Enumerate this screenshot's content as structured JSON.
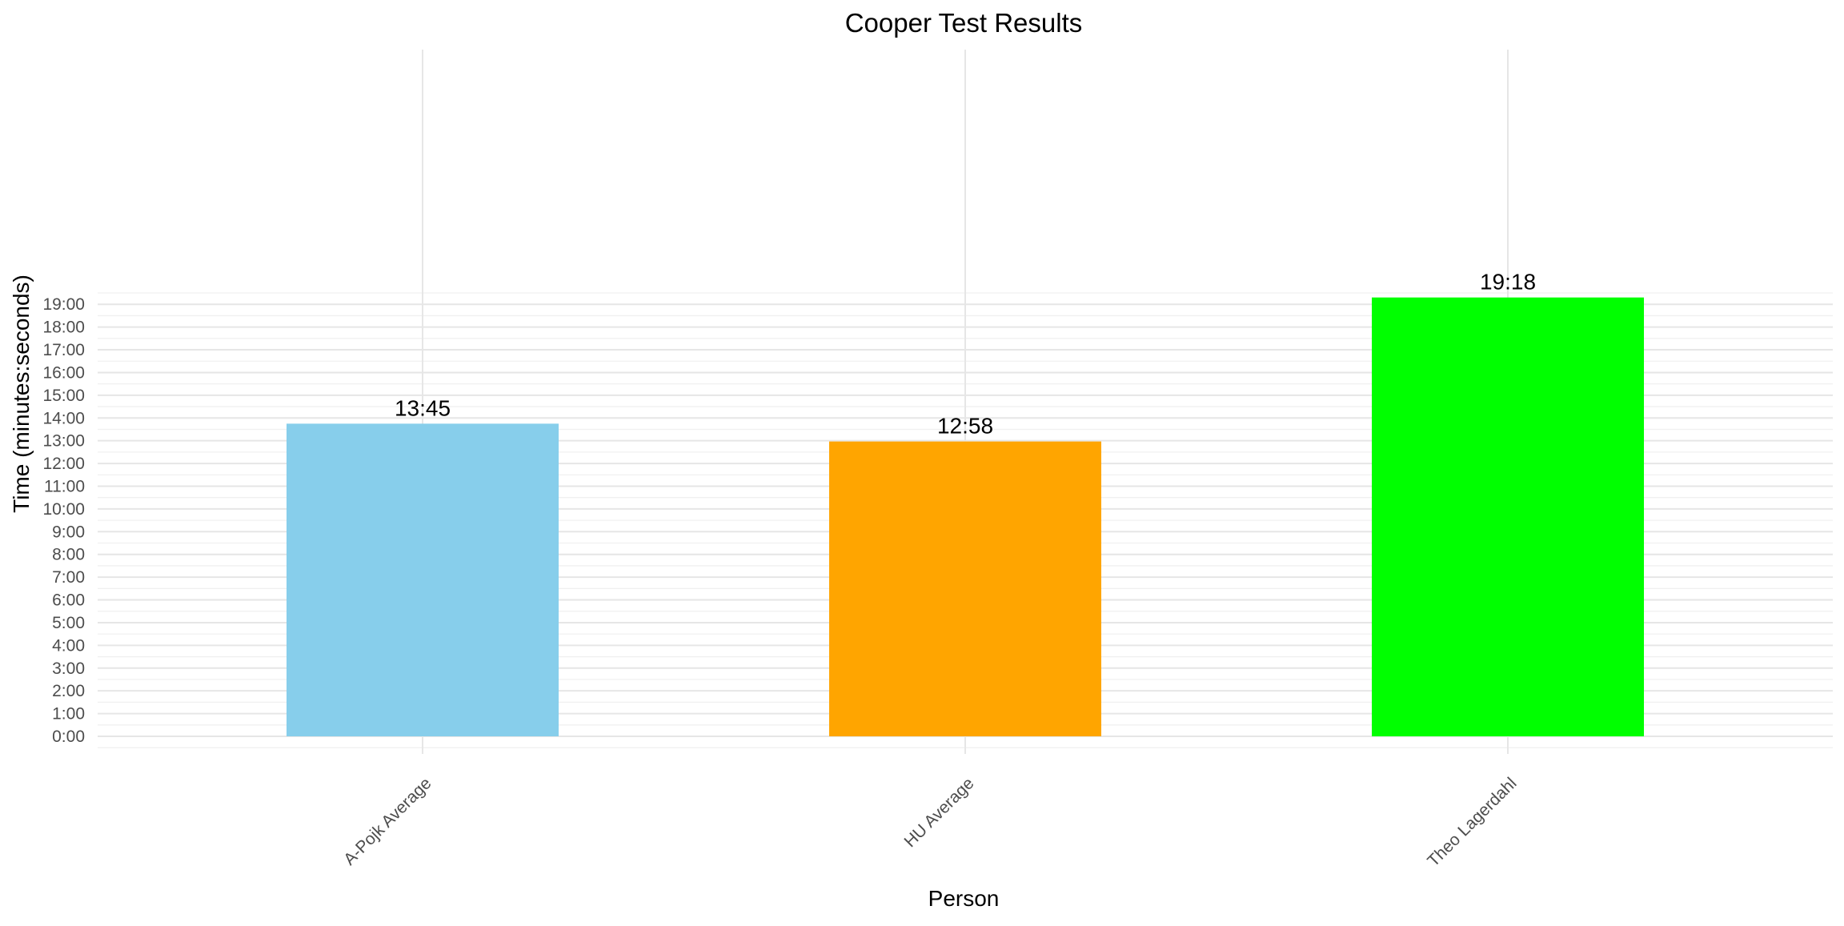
{
  "chart_data": {
    "type": "bar",
    "title": "Cooper Test Results",
    "xlabel": "Person",
    "ylabel": "Time (minutes:seconds)",
    "categories": [
      "A-Pojk Average",
      "HU Average",
      "Theo Lagerdahl"
    ],
    "values_seconds": [
      825,
      778,
      1158
    ],
    "data_labels": [
      "13:45",
      "12:58",
      "19:18"
    ],
    "colors": [
      "#87ceeb",
      "#ffa500",
      "#00ff00"
    ],
    "ylim_seconds": [
      -60,
      1200
    ],
    "y_ticks_seconds": [
      0,
      60,
      120,
      180,
      240,
      300,
      360,
      420,
      480,
      540,
      600,
      660,
      720,
      780,
      840,
      900,
      960,
      1020,
      1080,
      1140
    ],
    "y_tick_labels": [
      "0:00",
      "1:00",
      "2:00",
      "3:00",
      "4:00",
      "5:00",
      "6:00",
      "7:00",
      "8:00",
      "9:00",
      "10:00",
      "11:00",
      "12:00",
      "13:00",
      "14:00",
      "15:00",
      "16:00",
      "17:00",
      "18:00",
      "19:00"
    ],
    "grid": true,
    "legend": "none"
  }
}
